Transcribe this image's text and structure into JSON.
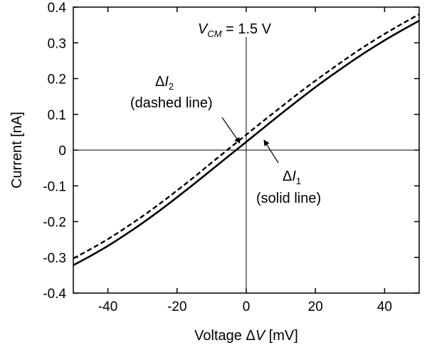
{
  "chart_data": {
    "type": "line",
    "xlabel": "Voltage ΔV [mV]",
    "ylabel": "Current [nA]",
    "xlim": [
      -50,
      50
    ],
    "ylim": [
      -0.4,
      0.4
    ],
    "xticks": [
      -40,
      -20,
      0,
      20,
      40
    ],
    "yticks": [
      0.4,
      0.3,
      0.2,
      0.1,
      0,
      -0.1,
      -0.2,
      -0.3,
      -0.4
    ],
    "xtick_labels": [
      "-40",
      "-20",
      "0",
      "20",
      "40"
    ],
    "ytick_labels": [
      "0.4",
      "0.3",
      "0.2",
      "0.1",
      "0",
      "-0.1",
      "-0.2",
      "-0.3",
      "-0.4"
    ],
    "grid": false,
    "reference_lines": {
      "x": 0,
      "y": 0
    },
    "series": [
      {
        "name": "ΔI1 (solid line)",
        "style": "solid",
        "color": "#000000",
        "x": [
          -50,
          -45,
          -40,
          -35,
          -30,
          -25,
          -20,
          -15,
          -10,
          -5,
          0,
          5,
          10,
          15,
          20,
          25,
          30,
          35,
          40,
          45,
          50
        ],
        "y": [
          -0.322,
          -0.296,
          -0.268,
          -0.237,
          -0.204,
          -0.169,
          -0.132,
          -0.094,
          -0.055,
          -0.016,
          0.023,
          0.062,
          0.101,
          0.139,
          0.176,
          0.211,
          0.245,
          0.277,
          0.307,
          0.335,
          0.362
        ]
      },
      {
        "name": "ΔI2 (dashed line)",
        "style": "dashed",
        "color": "#000000",
        "x": [
          -50,
          -45,
          -40,
          -35,
          -30,
          -25,
          -20,
          -15,
          -10,
          -5,
          0,
          5,
          10,
          15,
          20,
          25,
          30,
          35,
          40,
          45,
          50
        ],
        "y": [
          -0.303,
          -0.277,
          -0.249,
          -0.218,
          -0.185,
          -0.15,
          -0.113,
          -0.075,
          -0.035,
          0.004,
          0.043,
          0.082,
          0.12,
          0.158,
          0.194,
          0.229,
          0.263,
          0.295,
          0.325,
          0.353,
          0.38
        ]
      }
    ],
    "annotations": {
      "vcm": {
        "prefix": "V",
        "sub": "CM",
        "suffix": " = 1.5 V"
      },
      "i2": {
        "delta": "Δ",
        "symbol": "I",
        "sub": "2",
        "note": "(dashed line)"
      },
      "i1": {
        "delta": "Δ",
        "symbol": "I",
        "sub": "1",
        "note": "(solid line)"
      }
    }
  }
}
